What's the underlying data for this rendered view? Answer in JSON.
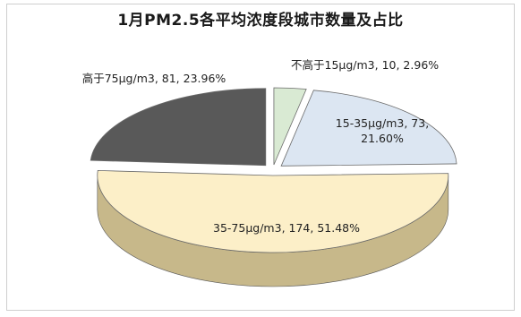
{
  "chart_data": {
    "type": "pie",
    "style": "3d-exploded",
    "title": "1月PM2.5各平均浓度段城市数量及占比",
    "legend": "none",
    "slices": [
      {
        "category": "不高于15μg/m3",
        "value": 10,
        "percent": "2.96%",
        "color": "#d9ead3"
      },
      {
        "category": "15-35μg/m3",
        "value": 73,
        "percent": "21.60%",
        "color": "#dce6f2"
      },
      {
        "category": "35-75μg/m3",
        "value": 174,
        "percent": "51.48%",
        "color": "#fcefc8"
      },
      {
        "category": "高于75μg/m3",
        "value": 81,
        "percent": "23.96%",
        "color": "#595959"
      }
    ],
    "labels": [
      "不高于15μg/m3, 10, 2.96%",
      [
        "15-35μg/m3, 73,",
        "21.60%"
      ],
      "35-75μg/m3, 174, 51.48%",
      "高于75μg/m3, 81, 23.96%"
    ]
  }
}
